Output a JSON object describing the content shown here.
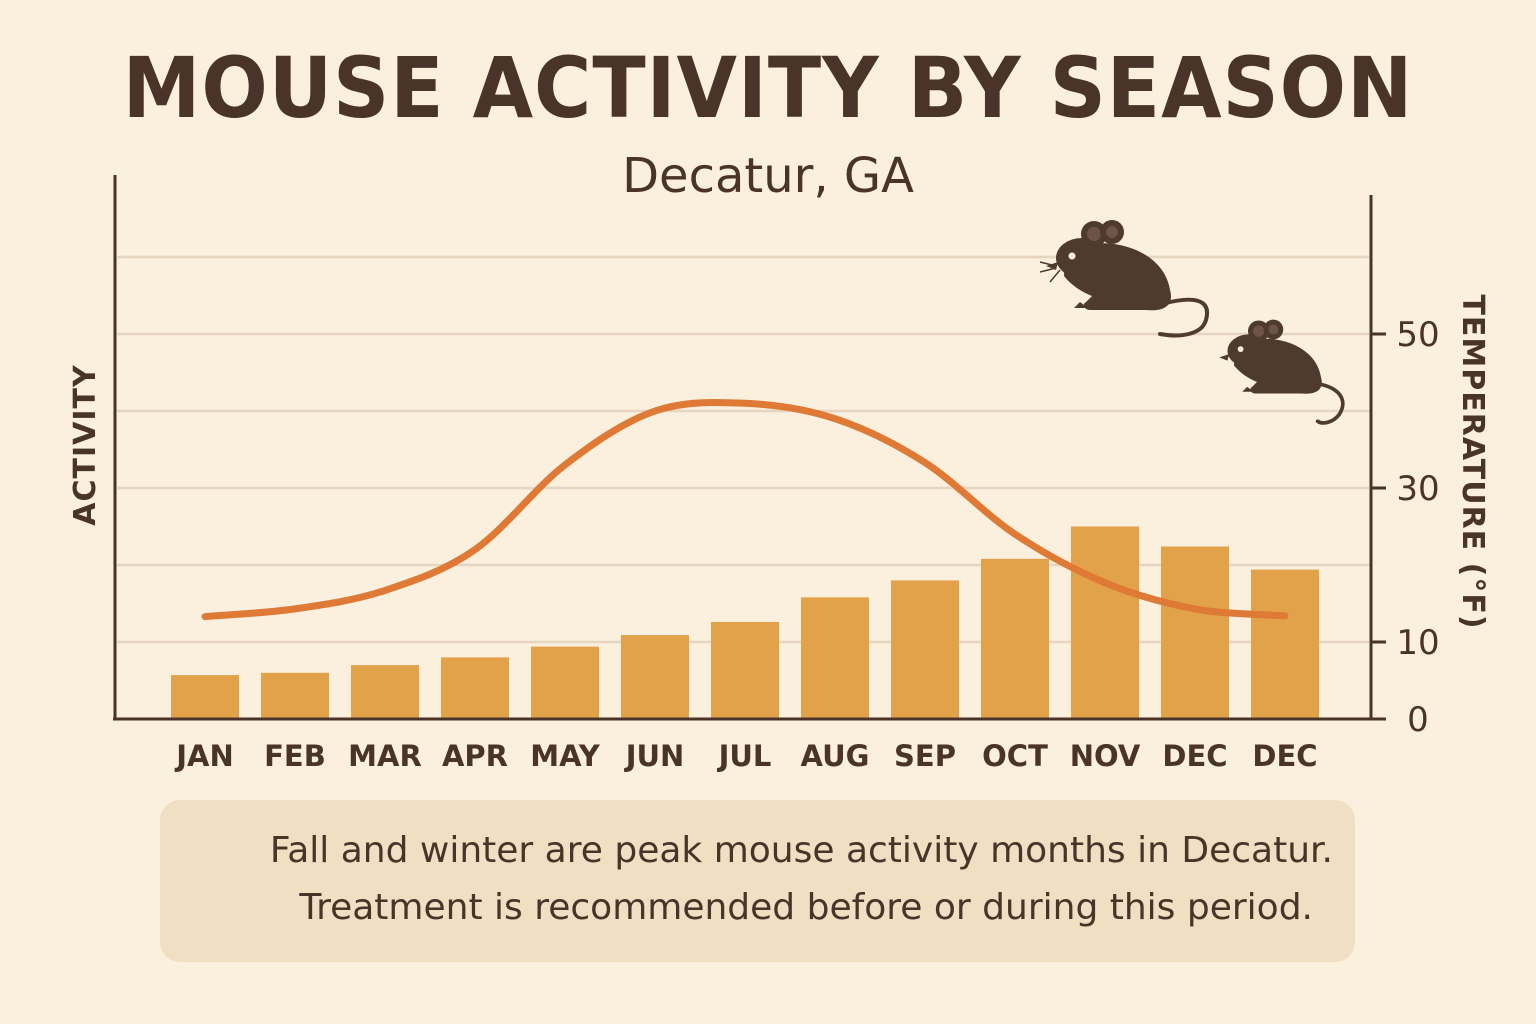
{
  "title": "MOUSE ACTIVITY BY SEASON",
  "subtitle": "Decatur, GA",
  "caption": {
    "line1": "Fall and winter are peak mouse activity months in Decatur.",
    "line2": "Treatment is recommended before or during this period."
  },
  "colors": {
    "background": "#fbefdd",
    "bar": "#e2a24a",
    "line": "#de7a35",
    "text": "#4a3328",
    "grid": "#e6d6bf",
    "caption_box": "#f0dfc3",
    "mouse": "#4e3a2f"
  },
  "icons": [
    "mouse-icon",
    "mouse-icon"
  ],
  "chart_data": {
    "type": "bar",
    "title": "MOUSE ACTIVITY BY SEASON",
    "subtitle": "Decatur, GA",
    "ylabel_left": "ACTIVITY",
    "ylabel_right": "TEMPERATURE (°F)",
    "categories": [
      "JAN",
      "FEB",
      "MAR",
      "APR",
      "MAY",
      "JUN",
      "JUL",
      "AUG",
      "SEP",
      "OCT",
      "NOV",
      "DEC",
      "DEC"
    ],
    "y_right_ticks": [
      0,
      10,
      30,
      50
    ],
    "y_right_range": [
      0,
      60
    ],
    "grid": true,
    "series": [
      {
        "type": "bar",
        "values": [
          5.7,
          6.0,
          7.0,
          8.0,
          9.4,
          10.9,
          12.6,
          15.8,
          18.0,
          20.8,
          25.0,
          22.4,
          19.4
        ]
      },
      {
        "type": "line",
        "values": [
          13.3,
          14.3,
          16.7,
          22.0,
          33.0,
          40.0,
          41.0,
          39.0,
          33.3,
          24.0,
          17.7,
          14.3,
          13.4
        ]
      }
    ]
  }
}
